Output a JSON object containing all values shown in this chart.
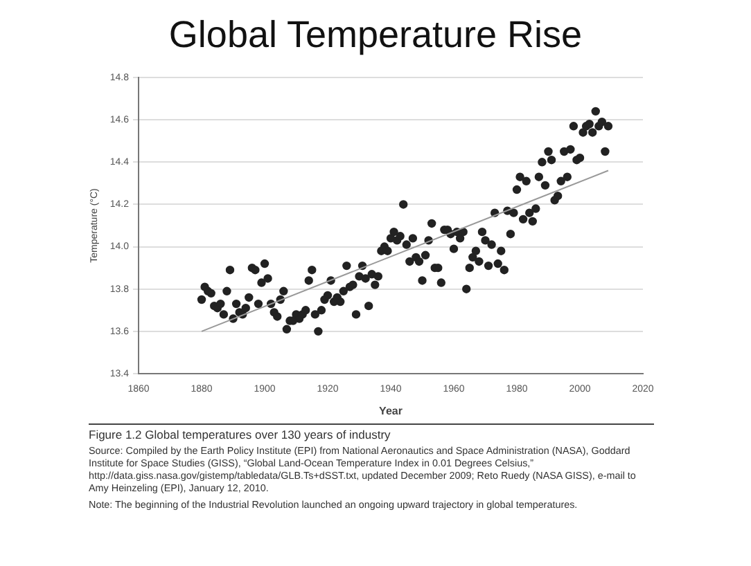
{
  "chart_data": {
    "type": "scatter",
    "title": "Global Temperature Rise",
    "xlabel": "Year",
    "ylabel": "Temperature (°C)",
    "xlim": [
      1860,
      2020
    ],
    "xticks": [
      1860,
      1880,
      1900,
      1920,
      1940,
      1960,
      1980,
      2000,
      2020
    ],
    "ylim": [
      13.4,
      14.8
    ],
    "yticks": [
      13.4,
      13.6,
      13.8,
      {
        "value": 14,
        "label": "14.0"
      },
      14.2,
      14.4,
      14.6,
      14.8
    ],
    "grid": "y",
    "legend": false,
    "marker": "circle",
    "series": [
      {
        "color": "#222222",
        "x": [
          1880,
          1881,
          1882,
          1883,
          1884,
          1885,
          1886,
          1887,
          1888,
          1889,
          1890,
          1891,
          1892,
          1893,
          1894,
          1895,
          1896,
          1897,
          1898,
          1899,
          1900,
          1901,
          1902,
          1903,
          1904,
          1905,
          1906,
          1907,
          1908,
          1909,
          1910,
          1911,
          1912,
          1913,
          1914,
          1915,
          1916,
          1917,
          1918,
          1919,
          1920,
          1921,
          1922,
          1923,
          1924,
          1925,
          1926,
          1927,
          1928,
          1929,
          1930,
          1931,
          1932,
          1933,
          1934,
          1935,
          1936,
          1937,
          1938,
          1939,
          1940,
          1941,
          1942,
          1943,
          1944,
          1945,
          1946,
          1947,
          1948,
          1949,
          1950,
          1951,
          1952,
          1953,
          1954,
          1955,
          1956,
          1957,
          1958,
          1959,
          1960,
          1961,
          1962,
          1963,
          1964,
          1965,
          1966,
          1967,
          1968,
          1969,
          1970,
          1971,
          1972,
          1973,
          1974,
          1975,
          1976,
          1977,
          1978,
          1979,
          1980,
          1981,
          1982,
          1983,
          1984,
          1985,
          1986,
          1987,
          1988,
          1989,
          1990,
          1991,
          1992,
          1993,
          1994,
          1995,
          1996,
          1997,
          1998,
          1999,
          2000,
          2001,
          2002,
          2003,
          2004,
          2005,
          2006,
          2007,
          2008,
          2009
        ],
        "values": [
          13.75,
          13.81,
          13.79,
          13.78,
          13.72,
          13.71,
          13.73,
          13.68,
          13.79,
          13.89,
          13.66,
          13.73,
          13.69,
          13.68,
          13.71,
          13.76,
          13.9,
          13.89,
          13.73,
          13.83,
          13.92,
          13.85,
          13.73,
          13.69,
          13.67,
          13.75,
          13.79,
          13.61,
          13.65,
          13.65,
          13.68,
          13.66,
          13.68,
          13.7,
          13.84,
          13.89,
          13.68,
          13.6,
          13.7,
          13.75,
          13.77,
          13.84,
          13.74,
          13.76,
          13.74,
          13.79,
          13.91,
          13.81,
          13.82,
          13.68,
          13.86,
          13.91,
          13.85,
          13.72,
          13.87,
          13.82,
          13.86,
          13.98,
          14.0,
          13.98,
          14.04,
          14.07,
          14.03,
          14.05,
          14.2,
          14.01,
          13.93,
          14.04,
          13.95,
          13.93,
          13.84,
          13.96,
          14.03,
          14.11,
          13.9,
          13.9,
          13.83,
          14.08,
          14.08,
          14.06,
          13.99,
          14.07,
          14.04,
          14.07,
          13.8,
          13.9,
          13.95,
          13.98,
          13.93,
          14.07,
          14.03,
          13.91,
          14.01,
          14.16,
          13.92,
          13.98,
          13.89,
          14.17,
          14.06,
          14.16,
          14.27,
          14.33,
          14.13,
          14.31,
          14.16,
          14.12,
          14.18,
          14.33,
          14.4,
          14.29,
          14.45,
          14.41,
          14.22,
          14.24,
          14.31,
          14.45,
          14.33,
          14.46,
          14.57,
          14.41,
          14.42,
          14.54,
          14.57,
          14.58,
          14.54,
          14.64,
          14.57,
          14.59,
          14.45,
          14.57
        ]
      },
      {
        "type": "line",
        "color": "#999999",
        "marker": "none",
        "x": [
          1880,
          2009
        ],
        "values": [
          13.6,
          14.36
        ]
      }
    ],
    "annotations": [
      "Figure 1.2  Global temperatures over 130 years of industry",
      "Source: Compiled by the Earth Policy Institute (EPI) from National Aeronautics and Space Administration (NASA), Goddard Institute for Space Studies (GISS), “Global Land-Ocean Temperature Index in 0.01 Degrees Celsius,” http://data.giss.nasa.gov/gistemp/tabledata/GLB.Ts+dSST.txt, updated December 2009; Reto Ruedy (NASA GISS), e-mail to Amy Heinzeling (EPI), January 12, 2010.",
      "Note: The beginning of the Industrial Revolution launched an ongoing upward trajectory in global temperatures."
    ]
  }
}
